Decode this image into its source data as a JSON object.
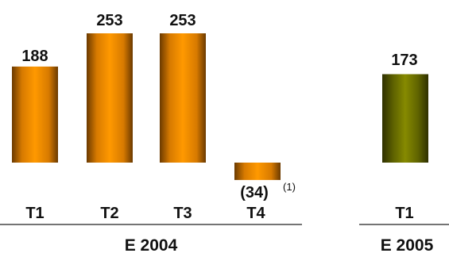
{
  "chart_data": {
    "type": "bar",
    "value_labels": [
      "188",
      "253",
      "253",
      "(34)",
      "173"
    ],
    "note": "(1)",
    "groups": [
      {
        "name": "E 2004",
        "color": "#ff9900",
        "categories": [
          "T1",
          "T2",
          "T3",
          "T4"
        ],
        "values": [
          188,
          253,
          253,
          -34
        ]
      },
      {
        "name": "E 2005",
        "color": "#7a8000",
        "categories": [
          "T1"
        ],
        "values": [
          173
        ]
      }
    ]
  }
}
